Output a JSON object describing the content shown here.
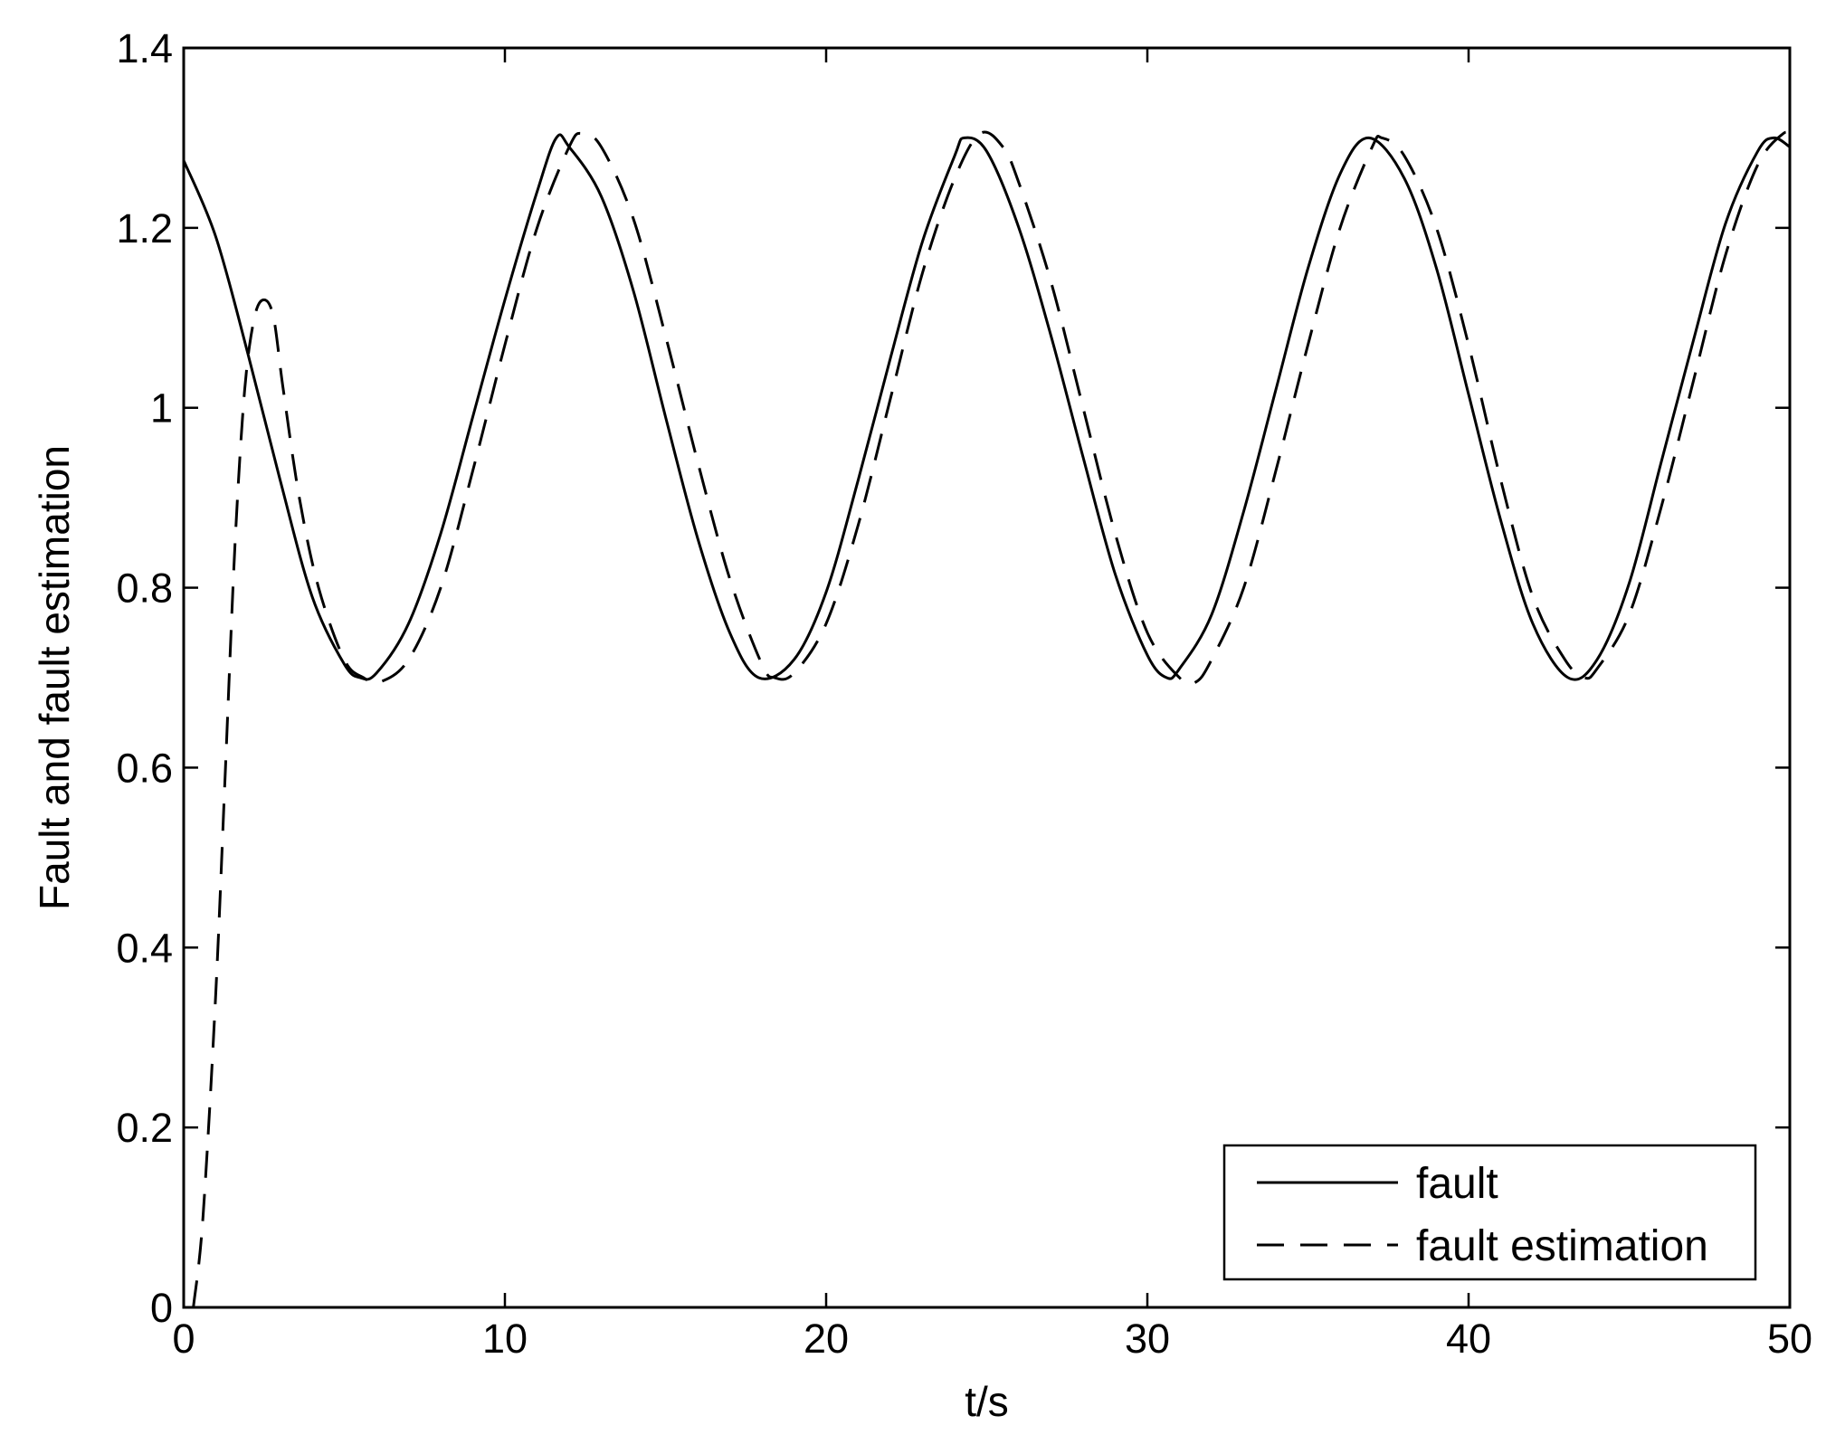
{
  "chart_data": {
    "type": "line",
    "title": "",
    "xlabel": "t/s",
    "ylabel": "Fault and fault estimation",
    "xlim": [
      0,
      50
    ],
    "ylim": [
      0,
      1.4
    ],
    "xticks": [
      "0",
      "10",
      "20",
      "30",
      "40",
      "50"
    ],
    "yticks": [
      "0",
      "0.2",
      "0.4",
      "0.6",
      "0.8",
      "1",
      "1.2",
      "1.4"
    ],
    "grid": false,
    "legend_position": "bottom-right",
    "series": [
      {
        "name": "fault",
        "style": "solid",
        "color": "#000000",
        "x": [
          0,
          1,
          2,
          3,
          4,
          5,
          5.5,
          6,
          7,
          8,
          9,
          10,
          11,
          11.6,
          12,
          13,
          14,
          15,
          16,
          17,
          17.9,
          19,
          20,
          21,
          22,
          23,
          24,
          24.3,
          25,
          26,
          27,
          28,
          29,
          30,
          30.6,
          31,
          32,
          33,
          34,
          35,
          36,
          36.9,
          38,
          39,
          40,
          41,
          42,
          43.1,
          44,
          45,
          46,
          47,
          48,
          49,
          49.5,
          50
        ],
        "y": [
          1.275,
          1.19,
          1.06,
          0.92,
          0.79,
          0.715,
          0.7,
          0.705,
          0.76,
          0.86,
          0.99,
          1.12,
          1.24,
          1.3,
          1.29,
          1.235,
          1.13,
          0.99,
          0.855,
          0.75,
          0.7,
          0.72,
          0.795,
          0.92,
          1.055,
          1.185,
          1.28,
          1.3,
          1.285,
          1.2,
          1.08,
          0.945,
          0.815,
          0.725,
          0.7,
          0.71,
          0.77,
          0.885,
          1.02,
          1.155,
          1.26,
          1.3,
          1.255,
          1.155,
          1.015,
          0.875,
          0.76,
          0.7,
          0.72,
          0.805,
          0.94,
          1.075,
          1.205,
          1.285,
          1.3,
          1.29
        ]
      },
      {
        "name": "fault estimation",
        "style": "dashed",
        "color": "#000000",
        "x": [
          0.3,
          0.6,
          1.0,
          1.3,
          1.6,
          1.9,
          2.2,
          2.5,
          2.8,
          3.1,
          3.6,
          4.2,
          5.0,
          5.6,
          6.1,
          7,
          8,
          9,
          10,
          11,
          12,
          12.4,
          13,
          14,
          15,
          16,
          17,
          18,
          18.4,
          19,
          20,
          21,
          22,
          23,
          24,
          24.8,
          25.5,
          26,
          27,
          28,
          29,
          30,
          31,
          31.5,
          32,
          33,
          34,
          35,
          36,
          37,
          37.3,
          38,
          39,
          40,
          41,
          42,
          43,
          43.6,
          44,
          45,
          46,
          47,
          48,
          49,
          49.8,
          50
        ],
        "y": [
          0,
          0.1,
          0.35,
          0.6,
          0.85,
          1.02,
          1.1,
          1.12,
          1.1,
          1.02,
          0.9,
          0.8,
          0.72,
          0.7,
          0.695,
          0.72,
          0.8,
          0.93,
          1.07,
          1.2,
          1.29,
          1.305,
          1.29,
          1.21,
          1.08,
          0.94,
          0.81,
          0.715,
          0.7,
          0.705,
          0.76,
          0.87,
          1.01,
          1.15,
          1.255,
          1.305,
          1.29,
          1.25,
          1.14,
          1.0,
          0.86,
          0.75,
          0.7,
          0.695,
          0.72,
          0.8,
          0.93,
          1.07,
          1.2,
          1.29,
          1.3,
          1.28,
          1.2,
          1.07,
          0.92,
          0.79,
          0.72,
          0.7,
          0.71,
          0.77,
          0.89,
          1.03,
          1.17,
          1.27,
          1.305,
          1.3
        ]
      }
    ]
  }
}
